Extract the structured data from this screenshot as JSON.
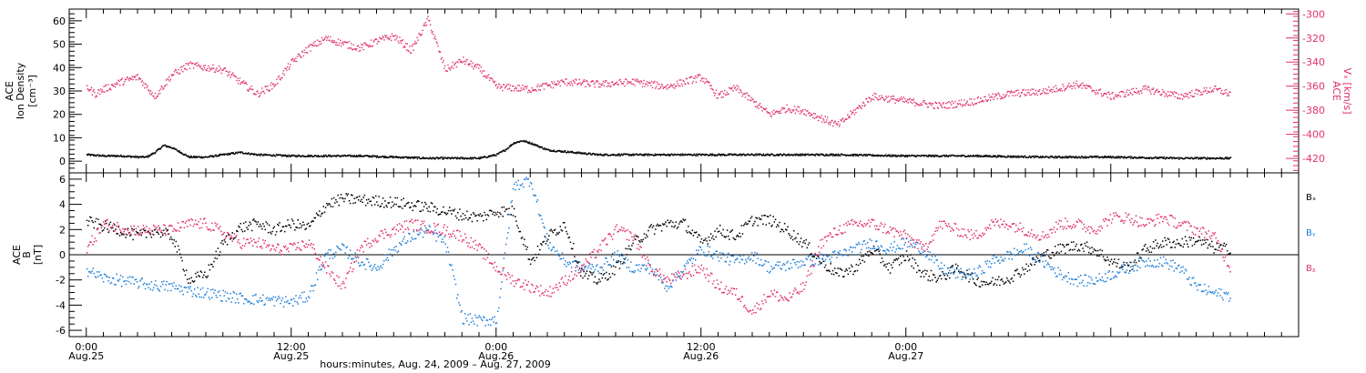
{
  "chart_data": [
    {
      "type": "scatter",
      "panel": "top",
      "ylabel_lines": [
        "ACE",
        "Ion Density",
        "[cm⁻³]"
      ],
      "ylim": [
        -5,
        65
      ],
      "yticks": [
        0,
        10,
        20,
        30,
        40,
        50,
        60
      ],
      "y2label_lines": [
        "ACE",
        "Vₓ [km/s]"
      ],
      "y2lim": [
        -432,
        -296
      ],
      "y2ticks": [
        -420,
        -400,
        -380,
        -360,
        -340,
        -320,
        -300
      ],
      "colors": {
        "density": "#000000",
        "velocity": "#e0306a"
      },
      "series": [
        {
          "name": "",
          "axis": "left",
          "x": [
            0,
            1,
            2,
            3,
            3.5,
            4,
            4.5,
            5,
            6,
            7,
            7.5,
            8,
            9,
            10,
            12,
            14,
            16,
            18,
            20,
            23,
            24,
            24.5,
            25,
            25.5,
            26,
            27,
            30,
            32,
            34,
            36,
            40,
            44,
            48,
            52,
            56,
            60,
            64,
            67
          ],
          "y": [
            3,
            2.5,
            2.5,
            2,
            2,
            4,
            7,
            6,
            2,
            2,
            2.5,
            3,
            4,
            3,
            2.5,
            2.5,
            2.5,
            2,
            1.5,
            1.5,
            3,
            5,
            8,
            9,
            8,
            5,
            3,
            3,
            3,
            3,
            3,
            3,
            2.5,
            2.5,
            2,
            2,
            1.5,
            1.5
          ]
        },
        {
          "name": "",
          "axis": "right",
          "x": [
            0,
            0.5,
            1,
            2,
            3,
            4,
            5,
            6,
            8,
            10,
            11,
            12,
            13,
            14,
            16,
            17,
            18,
            19,
            20,
            21,
            22,
            23,
            24,
            26,
            28,
            30,
            32,
            34,
            36,
            37,
            38,
            40,
            41,
            42,
            44,
            46,
            48,
            50,
            52,
            54,
            56,
            58,
            60,
            62,
            64,
            66,
            67
          ],
          "y": [
            -360,
            -366,
            -362,
            -356,
            -352,
            -368,
            -350,
            -342,
            -346,
            -366,
            -358,
            -340,
            -328,
            -320,
            -328,
            -322,
            -318,
            -330,
            -304,
            -346,
            -338,
            -345,
            -360,
            -362,
            -356,
            -358,
            -356,
            -360,
            -352,
            -368,
            -361,
            -383,
            -378,
            -380,
            -392,
            -368,
            -372,
            -376,
            -372,
            -366,
            -364,
            -358,
            -368,
            -362,
            -368,
            -362,
            -366
          ]
        }
      ]
    },
    {
      "type": "scatter",
      "panel": "bottom",
      "ylabel_lines": [
        "ACE",
        "B",
        "[nT]"
      ],
      "ylim": [
        -6.5,
        6.5
      ],
      "yticks": [
        -6,
        -4,
        -2,
        0,
        2,
        4,
        6
      ],
      "xlabel": "hours:minutes, Aug. 24, 2009 – Aug. 27, 2009",
      "xlim": [
        -1,
        71
      ],
      "xticks": [
        {
          "x": 0,
          "time": "0:00",
          "date": "Aug.25"
        },
        {
          "x": 12,
          "time": "12:00",
          "date": "Aug.25"
        },
        {
          "x": 24,
          "time": "0:00",
          "date": "Aug.26"
        },
        {
          "x": 36,
          "time": "12:00",
          "date": "Aug.26"
        },
        {
          "x": 48,
          "time": "0:00",
          "date": "Aug.27"
        }
      ],
      "series": [
        {
          "name": "Bₓ",
          "color": "#000000",
          "x": [
            0,
            1,
            2,
            3,
            4,
            5,
            6,
            7,
            8,
            9,
            10,
            11,
            12,
            13,
            14,
            15,
            16,
            17,
            18,
            19,
            20,
            21,
            22,
            23,
            24,
            25,
            26,
            27,
            28,
            29,
            30,
            31,
            32,
            33,
            34,
            35,
            36,
            37,
            38,
            39,
            40,
            41,
            42,
            43,
            44,
            45,
            46,
            47,
            48,
            49,
            50,
            51,
            52,
            53,
            54,
            55,
            56,
            57,
            58,
            59,
            60,
            61,
            62,
            63,
            64,
            65,
            66,
            67
          ],
          "y": [
            2.7,
            2.3,
            2,
            1.5,
            2,
            1.5,
            -2,
            -1.5,
            1,
            2.2,
            2.5,
            2,
            2.5,
            2.2,
            4,
            4.5,
            4.4,
            4.3,
            4.2,
            4,
            3.8,
            3.5,
            3.2,
            3,
            3.5,
            3.5,
            -0.5,
            1.5,
            2.5,
            -1.5,
            -2,
            -1,
            1,
            2,
            2.5,
            2.5,
            1,
            2,
            1.5,
            2.8,
            2.8,
            2,
            1,
            -0.5,
            -1.5,
            -1,
            0.5,
            -1,
            0,
            -1.5,
            -1.8,
            -1,
            -2,
            -2.2,
            -1.8,
            -1,
            0,
            0.5,
            0.8,
            0.5,
            -0.5,
            -1,
            0.5,
            1,
            1,
            1.2,
            0.6,
            0.5
          ]
        },
        {
          "name": "Bᵧ",
          "color": "#1e7fd8",
          "x": [
            0,
            1,
            2,
            3,
            4,
            5,
            6,
            7,
            8,
            9,
            10,
            11,
            12,
            13,
            14,
            15,
            16,
            17,
            18,
            19,
            20,
            21,
            22,
            23,
            24,
            25,
            26,
            27,
            28,
            29,
            30,
            31,
            32,
            33,
            34,
            35,
            36,
            37,
            38,
            39,
            40,
            41,
            42,
            43,
            44,
            45,
            46,
            47,
            48,
            49,
            50,
            51,
            52,
            53,
            54,
            55,
            56,
            57,
            58,
            59,
            60,
            61,
            62,
            63,
            64,
            65,
            66,
            67
          ],
          "y": [
            -1.2,
            -1.8,
            -2,
            -2.2,
            -2.4,
            -2.5,
            -2.8,
            -3,
            -3.2,
            -3.4,
            -3.5,
            -3.6,
            -3.7,
            -3.2,
            0,
            0.5,
            -0.5,
            -1,
            0.5,
            1.5,
            2,
            1,
            -5,
            -5.2,
            -5.1,
            5.5,
            6,
            1,
            -0.5,
            -1,
            -1,
            0,
            -1,
            -1,
            -2.5,
            -1,
            0.5,
            0,
            -0.5,
            0,
            -1,
            -0.8,
            -0.5,
            -0.3,
            0,
            0.5,
            1,
            0.5,
            1,
            0.5,
            -1,
            -1.5,
            -1.5,
            -0.5,
            0,
            0.5,
            -0.5,
            -1.5,
            -2,
            -2,
            -1.5,
            -1,
            -0.5,
            -0.5,
            -1,
            -2.5,
            -3,
            -3.2
          ]
        },
        {
          "name": "Bᵪ",
          "color": "#e0306a",
          "x": [
            0,
            1,
            2,
            3,
            4,
            5,
            6,
            7,
            8,
            9,
            10,
            11,
            12,
            13,
            14,
            15,
            16,
            17,
            18,
            19,
            20,
            21,
            22,
            23,
            24,
            25,
            26,
            27,
            28,
            29,
            30,
            31,
            32,
            33,
            34,
            35,
            36,
            37,
            38,
            39,
            40,
            41,
            42,
            43,
            44,
            45,
            46,
            47,
            48,
            49,
            50,
            51,
            52,
            53,
            54,
            55,
            56,
            57,
            58,
            59,
            60,
            61,
            62,
            63,
            64,
            65,
            66,
            67
          ],
          "y": [
            0.5,
            2.5,
            2.2,
            2,
            2,
            2,
            2.5,
            2.5,
            1.8,
            1,
            1,
            0.5,
            0.5,
            1,
            -1,
            -2.5,
            0.5,
            1.5,
            2,
            2.5,
            2.2,
            2,
            1.5,
            0.5,
            -1,
            -2,
            -2.5,
            -3,
            -2,
            -1,
            0.5,
            2,
            1.5,
            -1,
            -2,
            -1.5,
            -1,
            -2.5,
            -3,
            -4.5,
            -3,
            -3.5,
            -2.5,
            1,
            2,
            2.5,
            2.5,
            2,
            1.5,
            0.5,
            2.5,
            2,
            1.5,
            2.5,
            2.5,
            2,
            1.5,
            2.5,
            2.5,
            2,
            3,
            3,
            2.5,
            3,
            2.5,
            2,
            1.5,
            -1
          ]
        }
      ]
    }
  ]
}
